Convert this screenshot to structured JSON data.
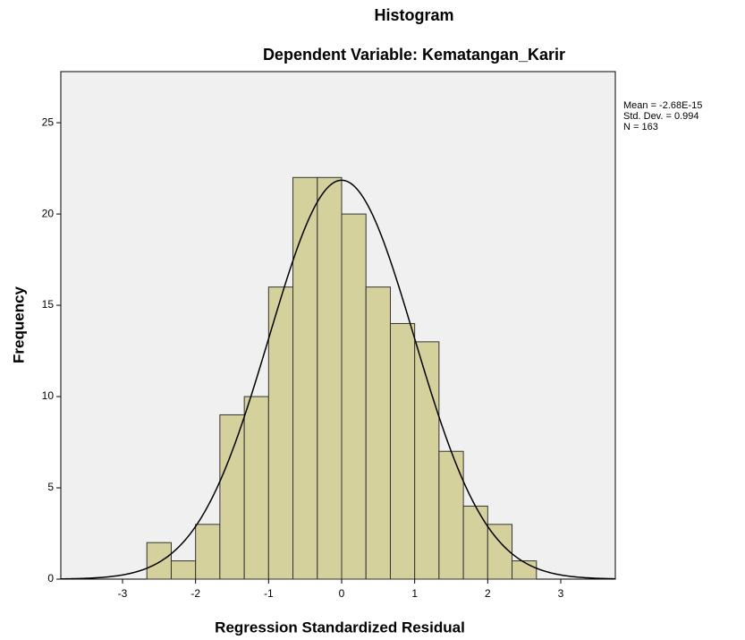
{
  "chart_data": {
    "type": "histogram",
    "title": "Histogram",
    "subtitle": "Dependent Variable: Kematangan_Karir",
    "x_label": "Regression Standardized Residual",
    "y_label": "Frequency",
    "bins": [
      -2.667,
      -2.333,
      -2.0,
      -1.667,
      -1.333,
      -1.0,
      -0.667,
      -0.333,
      0.0,
      0.333,
      0.667,
      1.0,
      1.333,
      1.667,
      2.0,
      2.333,
      2.667
    ],
    "values": [
      2,
      1,
      3,
      9,
      10,
      16,
      22,
      22,
      20,
      16,
      14,
      13,
      7,
      4,
      3,
      1
    ],
    "color": "#d4d19c",
    "edge_color": "#333333",
    "background": "#f0f0f0",
    "curve_color": "#000000",
    "stats": [
      {
        "value": -2.68e-15,
        "label": "Mean = -2.68E-15"
      },
      {
        "value": 0.994,
        "label": "Std. Dev. = 0.994"
      },
      {
        "value": 163,
        "label": "N = 163"
      }
    ],
    "xlim": [
      -3.845,
      3.747
    ],
    "ylim": [
      0,
      27.8
    ],
    "xticks": [
      -3,
      -2,
      -1,
      0,
      1,
      2,
      3
    ],
    "yticks": [
      0,
      5,
      10,
      15,
      20,
      25
    ]
  }
}
